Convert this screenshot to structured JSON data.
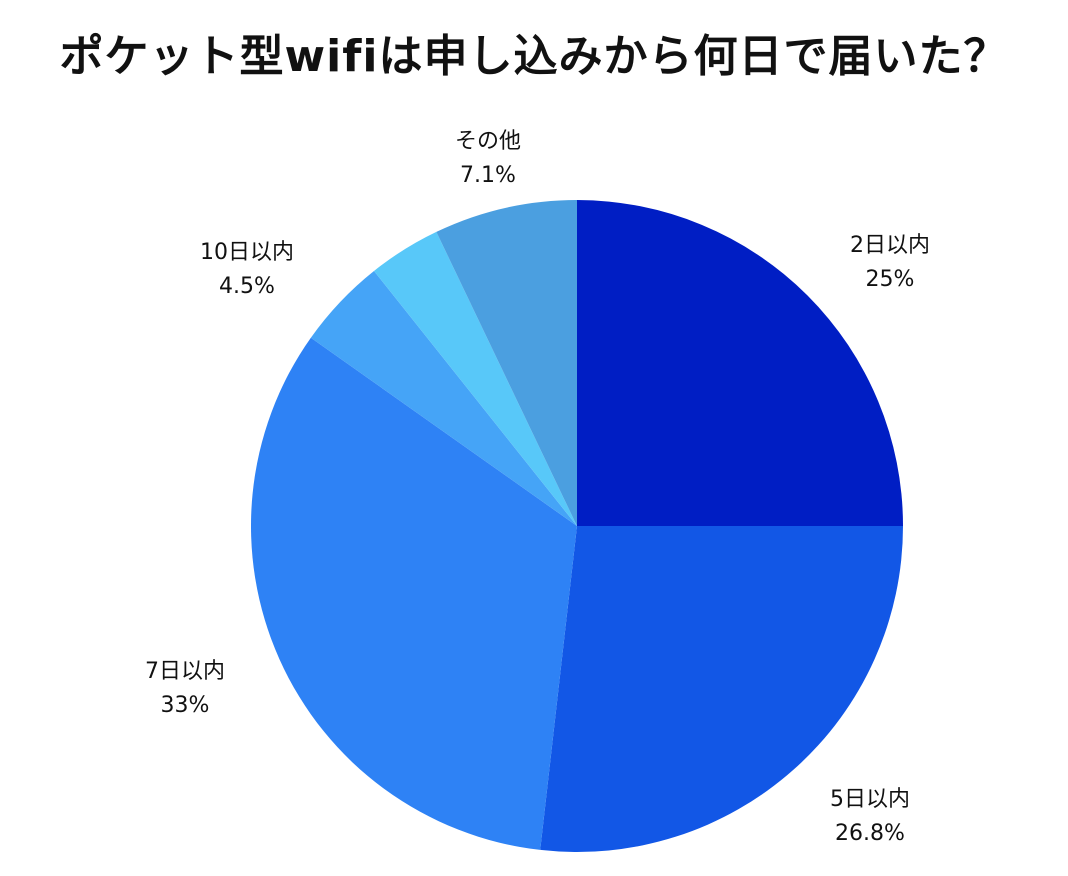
{
  "chart_data": {
    "type": "pie",
    "title": "ポケット型wifiは申し込みから何日で届いた？",
    "slices": [
      {
        "label": "2日以内",
        "value": 25,
        "value_label": "25%",
        "color": "#001ec4"
      },
      {
        "label": "5日以内",
        "value": 26.8,
        "value_label": "26.8%",
        "color": "#1257e6"
      },
      {
        "label": "7日以内",
        "value": 33,
        "value_label": "33%",
        "color": "#2e82f5"
      },
      {
        "label": "10日以内",
        "value": 4.5,
        "value_label": "4.5%",
        "color": "#45a4f7"
      },
      {
        "label": "",
        "value": 3.6,
        "value_label": "",
        "color": "#58c8f9"
      },
      {
        "label": "その他",
        "value": 7.1,
        "value_label": "7.1%",
        "color": "#4b9fe0"
      }
    ],
    "start": "12 o'clock",
    "direction": "clockwise",
    "legend": "none"
  }
}
